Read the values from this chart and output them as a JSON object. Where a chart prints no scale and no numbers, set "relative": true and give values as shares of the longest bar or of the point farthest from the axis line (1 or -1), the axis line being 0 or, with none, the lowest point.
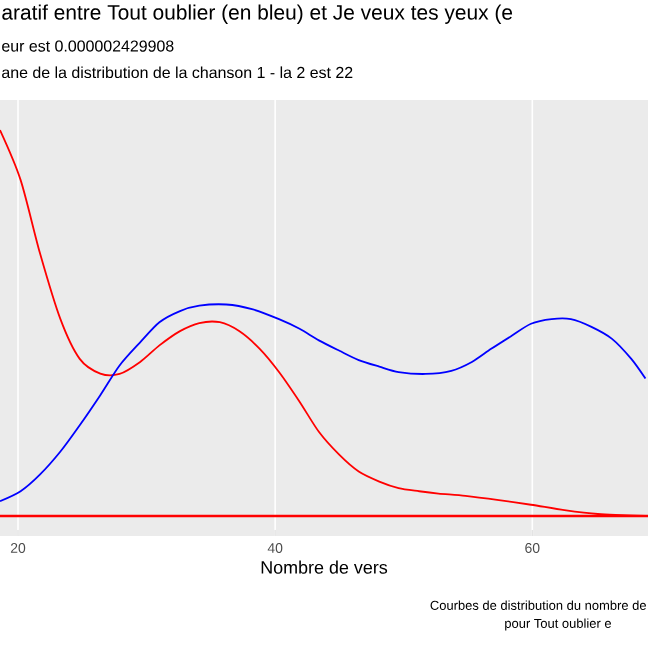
{
  "chart_data": {
    "type": "line",
    "title": "aratif entre  Tout oublier  (en bleu) et  Je veux tes yeux  (e",
    "subtitle": "eur est  0.000002429908",
    "xlabel": "Nombre de vers",
    "annotations": [
      "ane de la distribution de la chanson 1 - la 2 est  22",
      "Courbes de distribution du nombre de",
      "pour  Tout oublier  e"
    ],
    "relative": true,
    "xlim": [
      18.6,
      69
    ],
    "xticks": [
      20,
      40,
      60
    ],
    "grid": "x",
    "ref_lines": [
      {
        "axis": "y",
        "value": 0,
        "color": "#ff0000"
      }
    ],
    "series": [
      {
        "color": "#ff0000",
        "x": [
          18.6,
          20.2,
          21.7,
          23.3,
          24.8,
          26.4,
          27.9,
          29.5,
          31.0,
          32.6,
          34.1,
          35.7,
          37.2,
          38.8,
          40.3,
          41.9,
          43.4,
          45.0,
          46.5,
          48.1,
          49.6,
          51.2,
          52.7,
          54.8,
          57.4,
          59.9,
          62.5,
          65.1,
          68.8
        ],
        "values": [
          1.0,
          0.871,
          0.682,
          0.51,
          0.407,
          0.369,
          0.368,
          0.399,
          0.442,
          0.479,
          0.5,
          0.502,
          0.479,
          0.433,
          0.373,
          0.296,
          0.218,
          0.158,
          0.115,
          0.089,
          0.072,
          0.064,
          0.058,
          0.052,
          0.041,
          0.029,
          0.015,
          0.005,
          0.0
        ]
      },
      {
        "color": "#0000ff",
        "x": [
          18.6,
          20.2,
          21.7,
          23.3,
          24.8,
          26.4,
          27.9,
          29.5,
          31.0,
          32.6,
          34.1,
          36.2,
          38.2,
          40.3,
          41.9,
          43.4,
          45.0,
          46.5,
          48.1,
          49.6,
          51.7,
          53.7,
          55.3,
          56.8,
          58.4,
          59.9,
          61.5,
          63.0,
          64.6,
          66.2,
          67.7,
          68.8
        ],
        "values": [
          0.038,
          0.064,
          0.107,
          0.167,
          0.235,
          0.313,
          0.39,
          0.45,
          0.502,
          0.531,
          0.545,
          0.548,
          0.536,
          0.51,
          0.485,
          0.455,
          0.428,
          0.404,
          0.387,
          0.373,
          0.368,
          0.376,
          0.399,
          0.433,
          0.467,
          0.498,
          0.51,
          0.51,
          0.49,
          0.459,
          0.407,
          0.356
        ]
      }
    ]
  }
}
